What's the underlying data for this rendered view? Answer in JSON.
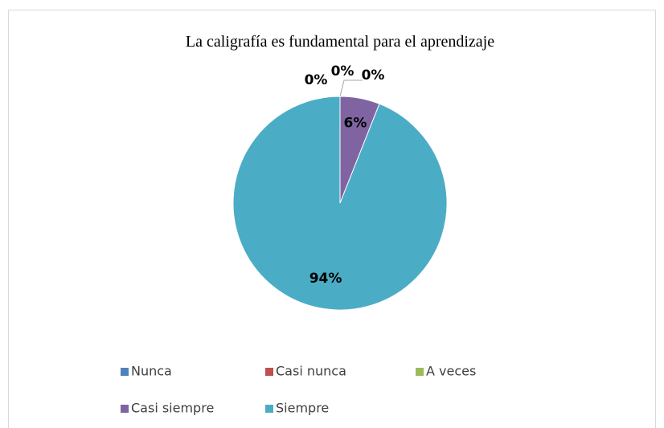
{
  "chart_data": {
    "type": "pie",
    "title": "La caligrafía es fundamental para el aprendizaje",
    "categories": [
      "Nunca",
      "Casi nunca",
      "A veces",
      "Casi siempre",
      "Siempre"
    ],
    "values": [
      0,
      0,
      0,
      6,
      94
    ],
    "value_labels": [
      "0%",
      "0%",
      "0%",
      "6%",
      "94%"
    ],
    "colors": [
      "#4f81bd",
      "#c0504d",
      "#9bbb59",
      "#8064a2",
      "#4bacc6"
    ],
    "legend": "bottom"
  }
}
